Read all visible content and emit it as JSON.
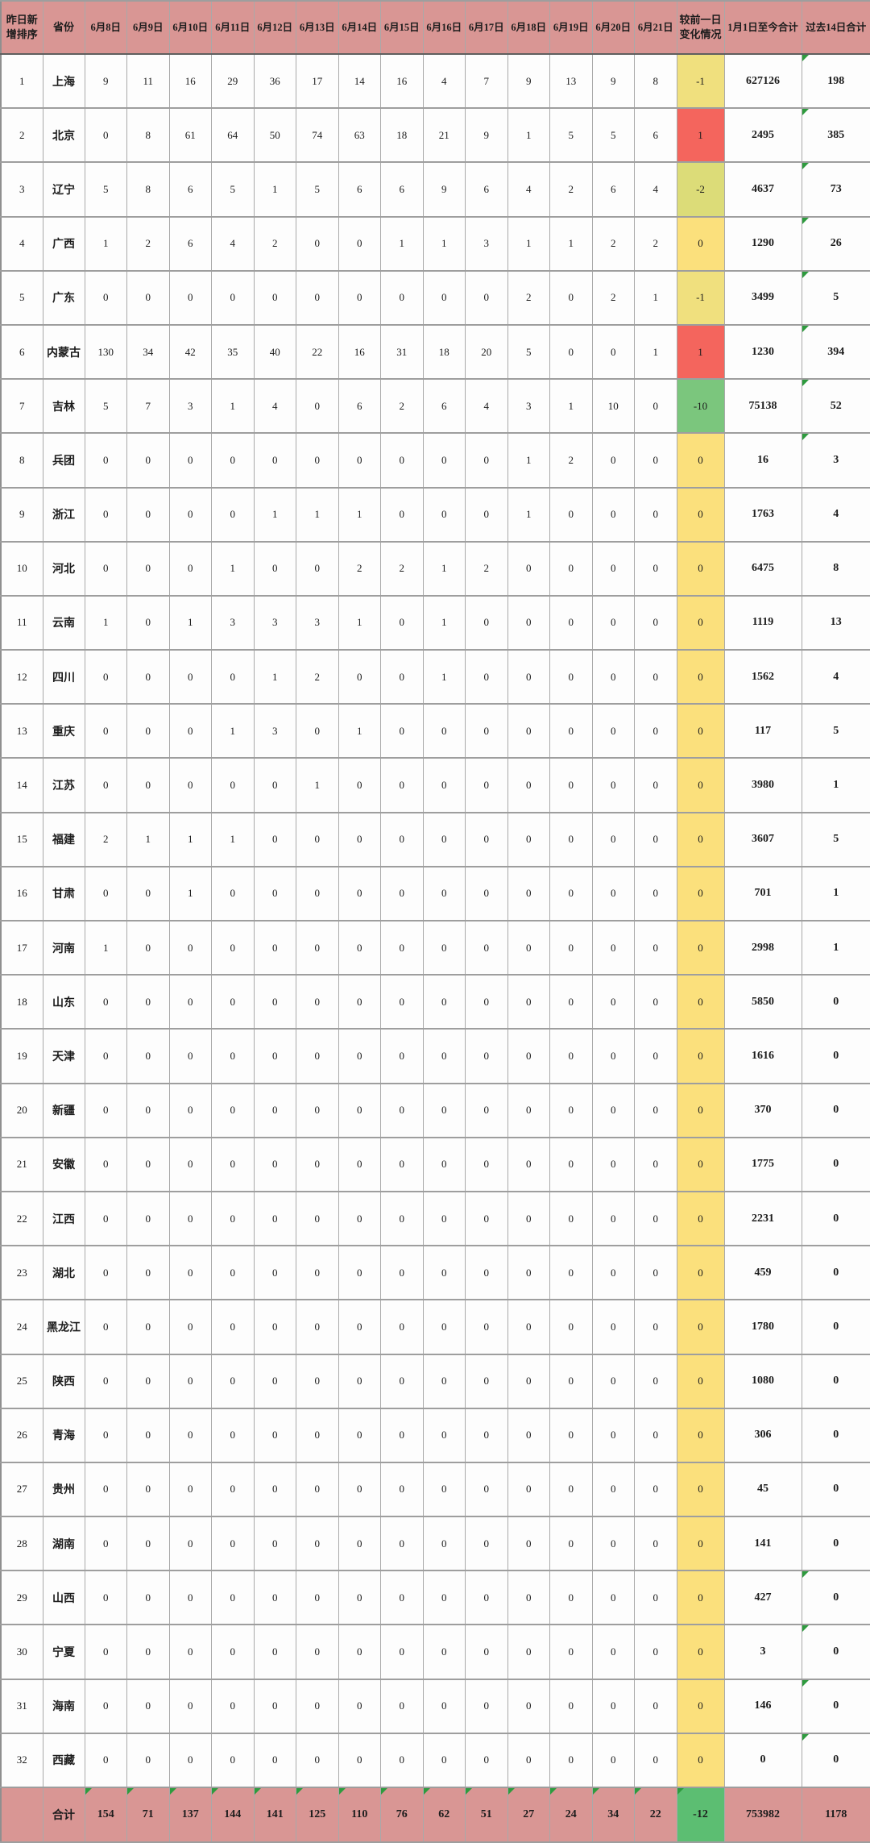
{
  "table": {
    "columns": [
      "昨日新增排序",
      "省份",
      "6月8日",
      "6月9日",
      "6月10日",
      "6月11日",
      "6月12日",
      "6月13日",
      "6月14日",
      "6月15日",
      "6月16日",
      "6月17日",
      "6月18日",
      "6月19日",
      "6月20日",
      "6月21日",
      "较前一日变化情况",
      "1月1日至今合计",
      "过去14日合计"
    ],
    "colors": {
      "header_bg": "#D99694",
      "total_row_bg": "#D99694",
      "flag_triangle": "#2E9B3E",
      "change_scale": {
        "positive_red": "#F4655D",
        "zero_yellow": "#FBE07C",
        "minus1": "#F0E07E",
        "minus2": "#DCDC78",
        "minus10": "#7BC67D",
        "minus12_green": "#5CBE72"
      }
    },
    "rows": [
      {
        "rank": "1",
        "province": "上海",
        "daily": [
          9,
          11,
          16,
          29,
          36,
          17,
          14,
          16,
          4,
          7,
          9,
          13,
          9,
          8
        ],
        "change": "-1",
        "change_color": "#F0E07E",
        "total_since_jan1": "627126",
        "past14": "198",
        "flag_past14": true
      },
      {
        "rank": "2",
        "province": "北京",
        "daily": [
          0,
          8,
          61,
          64,
          50,
          74,
          63,
          18,
          21,
          9,
          1,
          5,
          5,
          6
        ],
        "change": "1",
        "change_color": "#F4655D",
        "total_since_jan1": "2495",
        "past14": "385",
        "flag_past14": true
      },
      {
        "rank": "3",
        "province": "辽宁",
        "daily": [
          5,
          8,
          6,
          5,
          1,
          5,
          6,
          6,
          9,
          6,
          4,
          2,
          6,
          4
        ],
        "change": "-2",
        "change_color": "#DCDC78",
        "total_since_jan1": "4637",
        "past14": "73",
        "flag_past14": true
      },
      {
        "rank": "4",
        "province": "广西",
        "daily": [
          1,
          2,
          6,
          4,
          2,
          0,
          0,
          1,
          1,
          3,
          1,
          1,
          2,
          2
        ],
        "change": "0",
        "change_color": "#FBE07C",
        "total_since_jan1": "1290",
        "past14": "26",
        "flag_past14": true
      },
      {
        "rank": "5",
        "province": "广东",
        "daily": [
          0,
          0,
          0,
          0,
          0,
          0,
          0,
          0,
          0,
          0,
          2,
          0,
          2,
          1
        ],
        "change": "-1",
        "change_color": "#F0E07E",
        "total_since_jan1": "3499",
        "past14": "5",
        "flag_past14": true
      },
      {
        "rank": "6",
        "province": "内蒙古",
        "daily": [
          130,
          34,
          42,
          35,
          40,
          22,
          16,
          31,
          18,
          20,
          5,
          0,
          0,
          1
        ],
        "change": "1",
        "change_color": "#F4655D",
        "total_since_jan1": "1230",
        "past14": "394",
        "flag_past14": true
      },
      {
        "rank": "7",
        "province": "吉林",
        "daily": [
          5,
          7,
          3,
          1,
          4,
          0,
          6,
          2,
          6,
          4,
          3,
          1,
          10,
          0
        ],
        "change": "-10",
        "change_color": "#7BC67D",
        "total_since_jan1": "75138",
        "past14": "52",
        "flag_past14": true
      },
      {
        "rank": "8",
        "province": "兵团",
        "daily": [
          0,
          0,
          0,
          0,
          0,
          0,
          0,
          0,
          0,
          0,
          1,
          2,
          0,
          0
        ],
        "change": "0",
        "change_color": "#FBE07C",
        "total_since_jan1": "16",
        "past14": "3",
        "flag_past14": true
      },
      {
        "rank": "9",
        "province": "浙江",
        "daily": [
          0,
          0,
          0,
          0,
          1,
          1,
          1,
          0,
          0,
          0,
          1,
          0,
          0,
          0
        ],
        "change": "0",
        "change_color": "#FBE07C",
        "total_since_jan1": "1763",
        "past14": "4",
        "flag_past14": false
      },
      {
        "rank": "10",
        "province": "河北",
        "daily": [
          0,
          0,
          0,
          1,
          0,
          0,
          2,
          2,
          1,
          2,
          0,
          0,
          0,
          0
        ],
        "change": "0",
        "change_color": "#FBE07C",
        "total_since_jan1": "6475",
        "past14": "8",
        "flag_past14": false
      },
      {
        "rank": "11",
        "province": "云南",
        "daily": [
          1,
          0,
          1,
          3,
          3,
          3,
          1,
          0,
          1,
          0,
          0,
          0,
          0,
          0
        ],
        "change": "0",
        "change_color": "#FBE07C",
        "total_since_jan1": "1119",
        "past14": "13",
        "flag_past14": false
      },
      {
        "rank": "12",
        "province": "四川",
        "daily": [
          0,
          0,
          0,
          0,
          1,
          2,
          0,
          0,
          1,
          0,
          0,
          0,
          0,
          0
        ],
        "change": "0",
        "change_color": "#FBE07C",
        "total_since_jan1": "1562",
        "past14": "4",
        "flag_past14": false
      },
      {
        "rank": "13",
        "province": "重庆",
        "daily": [
          0,
          0,
          0,
          1,
          3,
          0,
          1,
          0,
          0,
          0,
          0,
          0,
          0,
          0
        ],
        "change": "0",
        "change_color": "#FBE07C",
        "total_since_jan1": "117",
        "past14": "5",
        "flag_past14": false
      },
      {
        "rank": "14",
        "province": "江苏",
        "daily": [
          0,
          0,
          0,
          0,
          0,
          1,
          0,
          0,
          0,
          0,
          0,
          0,
          0,
          0
        ],
        "change": "0",
        "change_color": "#FBE07C",
        "total_since_jan1": "3980",
        "past14": "1",
        "flag_past14": false
      },
      {
        "rank": "15",
        "province": "福建",
        "daily": [
          2,
          1,
          1,
          1,
          0,
          0,
          0,
          0,
          0,
          0,
          0,
          0,
          0,
          0
        ],
        "change": "0",
        "change_color": "#FBE07C",
        "total_since_jan1": "3607",
        "past14": "5",
        "flag_past14": false
      },
      {
        "rank": "16",
        "province": "甘肃",
        "daily": [
          0,
          0,
          1,
          0,
          0,
          0,
          0,
          0,
          0,
          0,
          0,
          0,
          0,
          0
        ],
        "change": "0",
        "change_color": "#FBE07C",
        "total_since_jan1": "701",
        "past14": "1",
        "flag_past14": false
      },
      {
        "rank": "17",
        "province": "河南",
        "daily": [
          1,
          0,
          0,
          0,
          0,
          0,
          0,
          0,
          0,
          0,
          0,
          0,
          0,
          0
        ],
        "change": "0",
        "change_color": "#FBE07C",
        "total_since_jan1": "2998",
        "past14": "1",
        "flag_past14": false
      },
      {
        "rank": "18",
        "province": "山东",
        "daily": [
          0,
          0,
          0,
          0,
          0,
          0,
          0,
          0,
          0,
          0,
          0,
          0,
          0,
          0
        ],
        "change": "0",
        "change_color": "#FBE07C",
        "total_since_jan1": "5850",
        "past14": "0",
        "flag_past14": false
      },
      {
        "rank": "19",
        "province": "天津",
        "daily": [
          0,
          0,
          0,
          0,
          0,
          0,
          0,
          0,
          0,
          0,
          0,
          0,
          0,
          0
        ],
        "change": "0",
        "change_color": "#FBE07C",
        "total_since_jan1": "1616",
        "past14": "0",
        "flag_past14": false
      },
      {
        "rank": "20",
        "province": "新疆",
        "daily": [
          0,
          0,
          0,
          0,
          0,
          0,
          0,
          0,
          0,
          0,
          0,
          0,
          0,
          0
        ],
        "change": "0",
        "change_color": "#FBE07C",
        "total_since_jan1": "370",
        "past14": "0",
        "flag_past14": false
      },
      {
        "rank": "21",
        "province": "安徽",
        "daily": [
          0,
          0,
          0,
          0,
          0,
          0,
          0,
          0,
          0,
          0,
          0,
          0,
          0,
          0
        ],
        "change": "0",
        "change_color": "#FBE07C",
        "total_since_jan1": "1775",
        "past14": "0",
        "flag_past14": false
      },
      {
        "rank": "22",
        "province": "江西",
        "daily": [
          0,
          0,
          0,
          0,
          0,
          0,
          0,
          0,
          0,
          0,
          0,
          0,
          0,
          0
        ],
        "change": "0",
        "change_color": "#FBE07C",
        "total_since_jan1": "2231",
        "past14": "0",
        "flag_past14": false
      },
      {
        "rank": "23",
        "province": "湖北",
        "daily": [
          0,
          0,
          0,
          0,
          0,
          0,
          0,
          0,
          0,
          0,
          0,
          0,
          0,
          0
        ],
        "change": "0",
        "change_color": "#FBE07C",
        "total_since_jan1": "459",
        "past14": "0",
        "flag_past14": false
      },
      {
        "rank": "24",
        "province": "黑龙江",
        "daily": [
          0,
          0,
          0,
          0,
          0,
          0,
          0,
          0,
          0,
          0,
          0,
          0,
          0,
          0
        ],
        "change": "0",
        "change_color": "#FBE07C",
        "total_since_jan1": "1780",
        "past14": "0",
        "flag_past14": false
      },
      {
        "rank": "25",
        "province": "陕西",
        "daily": [
          0,
          0,
          0,
          0,
          0,
          0,
          0,
          0,
          0,
          0,
          0,
          0,
          0,
          0
        ],
        "change": "0",
        "change_color": "#FBE07C",
        "total_since_jan1": "1080",
        "past14": "0",
        "flag_past14": false
      },
      {
        "rank": "26",
        "province": "青海",
        "daily": [
          0,
          0,
          0,
          0,
          0,
          0,
          0,
          0,
          0,
          0,
          0,
          0,
          0,
          0
        ],
        "change": "0",
        "change_color": "#FBE07C",
        "total_since_jan1": "306",
        "past14": "0",
        "flag_past14": false
      },
      {
        "rank": "27",
        "province": "贵州",
        "daily": [
          0,
          0,
          0,
          0,
          0,
          0,
          0,
          0,
          0,
          0,
          0,
          0,
          0,
          0
        ],
        "change": "0",
        "change_color": "#FBE07C",
        "total_since_jan1": "45",
        "past14": "0",
        "flag_past14": false
      },
      {
        "rank": "28",
        "province": "湖南",
        "daily": [
          0,
          0,
          0,
          0,
          0,
          0,
          0,
          0,
          0,
          0,
          0,
          0,
          0,
          0
        ],
        "change": "0",
        "change_color": "#FBE07C",
        "total_since_jan1": "141",
        "past14": "0",
        "flag_past14": false
      },
      {
        "rank": "29",
        "province": "山西",
        "daily": [
          0,
          0,
          0,
          0,
          0,
          0,
          0,
          0,
          0,
          0,
          0,
          0,
          0,
          0
        ],
        "change": "0",
        "change_color": "#FBE07C",
        "total_since_jan1": "427",
        "past14": "0",
        "flag_past14": true
      },
      {
        "rank": "30",
        "province": "宁夏",
        "daily": [
          0,
          0,
          0,
          0,
          0,
          0,
          0,
          0,
          0,
          0,
          0,
          0,
          0,
          0
        ],
        "change": "0",
        "change_color": "#FBE07C",
        "total_since_jan1": "3",
        "past14": "0",
        "flag_past14": true
      },
      {
        "rank": "31",
        "province": "海南",
        "daily": [
          0,
          0,
          0,
          0,
          0,
          0,
          0,
          0,
          0,
          0,
          0,
          0,
          0,
          0
        ],
        "change": "0",
        "change_color": "#FBE07C",
        "total_since_jan1": "146",
        "past14": "0",
        "flag_past14": true
      },
      {
        "rank": "32",
        "province": "西藏",
        "daily": [
          0,
          0,
          0,
          0,
          0,
          0,
          0,
          0,
          0,
          0,
          0,
          0,
          0,
          0
        ],
        "change": "0",
        "change_color": "#FBE07C",
        "total_since_jan1": "0",
        "past14": "0",
        "flag_past14": true
      }
    ],
    "total_row": {
      "rank_label": "",
      "label": "合计",
      "daily": [
        154,
        71,
        137,
        144,
        141,
        125,
        110,
        76,
        62,
        51,
        27,
        24,
        34,
        22
      ],
      "change": "-12",
      "change_color": "#5CBE72",
      "total_since_jan1": "753982",
      "past14": "1178"
    }
  }
}
